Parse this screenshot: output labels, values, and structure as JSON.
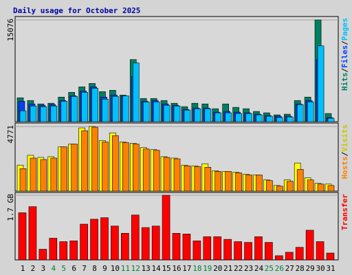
{
  "chart_data": [
    {
      "type": "bar",
      "title": "Daily usage for October 2025",
      "legend_separator": "/",
      "ylim": [
        0,
        15076
      ],
      "yticks": [
        15076
      ],
      "series": [
        {
          "name": "Hits",
          "color": "#008060",
          "values": [
            3541,
            3137,
            2631,
            2732,
            3643,
            4351,
            5160,
            5666,
            4452,
            4654,
            3946,
            9207,
            3440,
            3440,
            3137,
            2732,
            2226,
            2732,
            2631,
            1922,
            2631,
            2125,
            1922,
            1518,
            1315,
            1012,
            1113,
            3137,
            3643,
            15076,
            1214
          ]
        },
        {
          "name": "Files",
          "color": "#0040ff",
          "values": [
            3035,
            2631,
            2428,
            2530,
            3137,
            3845,
            4553,
            5160,
            3643,
            3946,
            3744,
            6678,
            3035,
            3137,
            2631,
            2428,
            1821,
            2024,
            2024,
            1417,
            1518,
            1417,
            1315,
            1113,
            911,
            809,
            809,
            2631,
            3137,
            9207,
            607
          ]
        },
        {
          "name": "Pages",
          "color": "#00c0ff",
          "values": [
            1619,
            2327,
            2226,
            2327,
            3035,
            3744,
            4351,
            4958,
            3339,
            3744,
            3845,
            8702,
            2934,
            2934,
            2428,
            2327,
            1720,
            1922,
            1922,
            1315,
            1315,
            1214,
            1214,
            1012,
            809,
            607,
            708,
            2530,
            2934,
            11231,
            506
          ]
        }
      ]
    },
    {
      "type": "bar",
      "legend_separator": "/",
      "ylim": [
        0,
        4771
      ],
      "yticks": [
        4771
      ],
      "series": [
        {
          "name": "Hosts",
          "color": "#ff8000",
          "values": [
            1659,
            2437,
            2334,
            2437,
            3267,
            3475,
            4460,
            4719,
            3630,
            4097,
            3578,
            3475,
            3112,
            3008,
            2489,
            2385,
            1867,
            1815,
            1763,
            1452,
            1452,
            1348,
            1193,
            1193,
            778,
            363,
            726,
            1608,
            830,
            519,
            415
          ]
        },
        {
          "name": "Visits",
          "color": "#ffff00",
          "values": [
            1919,
            2645,
            2489,
            2541,
            3267,
            3475,
            4667,
            4771,
            3734,
            4304,
            3630,
            3526,
            3215,
            3060,
            2541,
            2437,
            1919,
            1867,
            2022,
            1504,
            1452,
            1400,
            1245,
            1193,
            830,
            415,
            830,
            2074,
            985,
            570,
            519
          ]
        }
      ]
    },
    {
      "type": "bar",
      "ylim": [
        0,
        1.7
      ],
      "yticks": [
        {
          "value": 1.7,
          "label": "1.7 GB"
        }
      ],
      "series": [
        {
          "name": "Transfer",
          "color": "#ff0000",
          "values": [
            1.24,
            1.4,
            0.28,
            0.57,
            0.48,
            0.5,
            0.94,
            1.07,
            1.11,
            0.89,
            0.7,
            1.18,
            0.85,
            0.89,
            1.7,
            0.7,
            0.68,
            0.5,
            0.61,
            0.61,
            0.54,
            0.48,
            0.46,
            0.61,
            0.46,
            0.11,
            0.2,
            0.33,
            0.78,
            0.48,
            0.18
          ]
        }
      ],
      "categories": [
        "1",
        "2",
        "3",
        "4",
        "5",
        "6",
        "7",
        "8",
        "9",
        "10",
        "11",
        "12",
        "13",
        "14",
        "15",
        "16",
        "17",
        "18",
        "19",
        "20",
        "21",
        "22",
        "23",
        "24",
        "25",
        "26",
        "27",
        "28",
        "29",
        "30",
        "31"
      ],
      "category_colors": [
        "#000000",
        "#000000",
        "#000000",
        "#008040",
        "#008040",
        "#000000",
        "#000000",
        "#000000",
        "#000000",
        "#000000",
        "#008040",
        "#008040",
        "#000000",
        "#000000",
        "#000000",
        "#000000",
        "#000000",
        "#008040",
        "#008040",
        "#000000",
        "#000000",
        "#000000",
        "#000000",
        "#000000",
        "#008040",
        "#008040",
        "#000000",
        "#000000",
        "#000000",
        "#000000",
        "#000000"
      ]
    }
  ]
}
